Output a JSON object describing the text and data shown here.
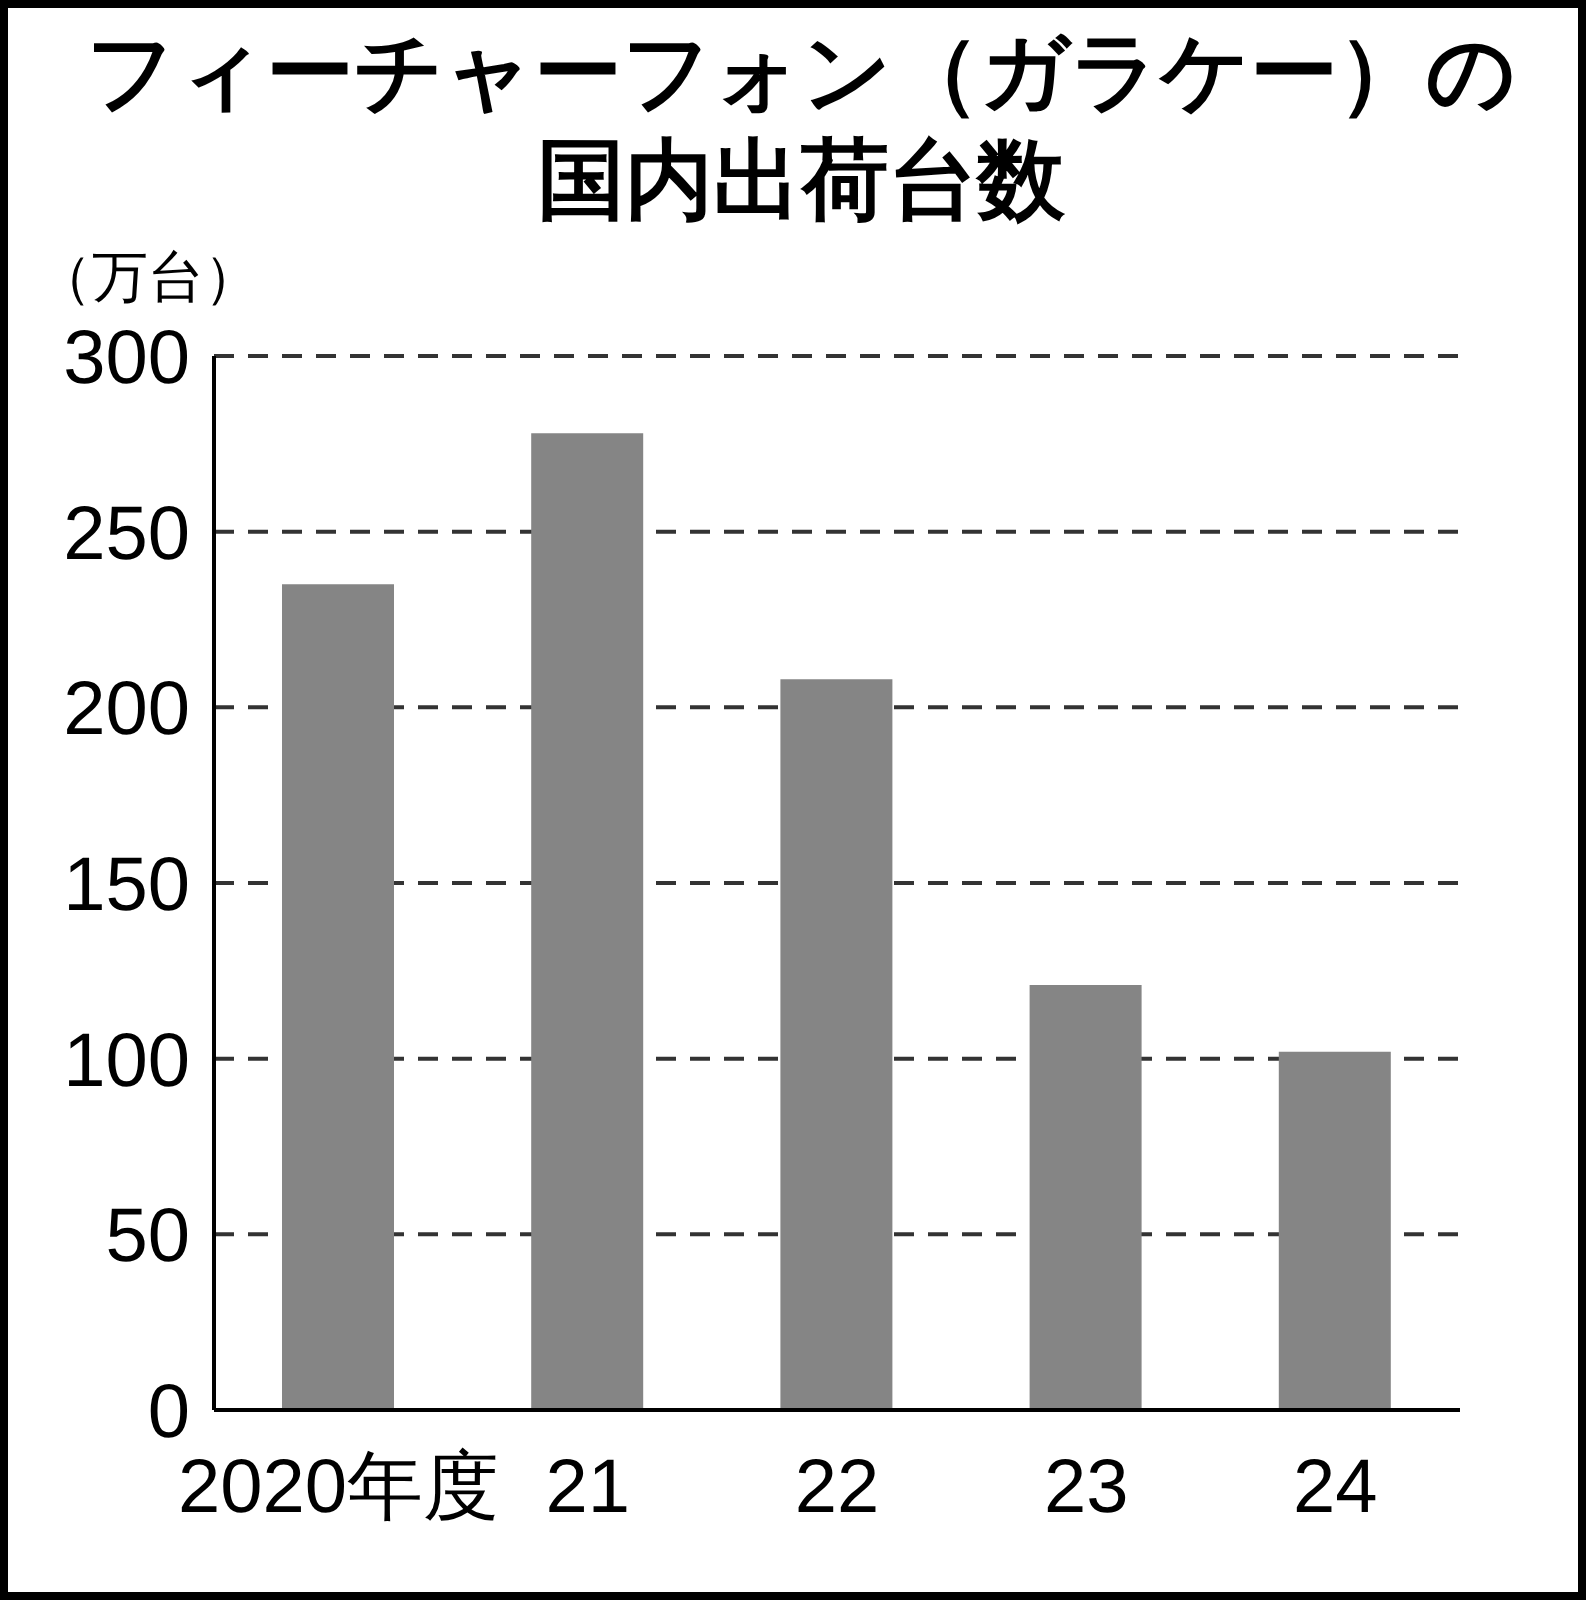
{
  "chart_data": {
    "type": "bar",
    "title": "フィーチャーフォン（ガラケー）の国内出荷台数",
    "ylabel": "（万台）",
    "categories": [
      "2020年度",
      "21",
      "22",
      "23",
      "24"
    ],
    "values": [
      235,
      278,
      208,
      121,
      102
    ],
    "color": "#858585",
    "ylim": [
      0,
      300
    ],
    "yticks": [
      0,
      50,
      100,
      150,
      200,
      250,
      300
    ],
    "grid": "y"
  }
}
